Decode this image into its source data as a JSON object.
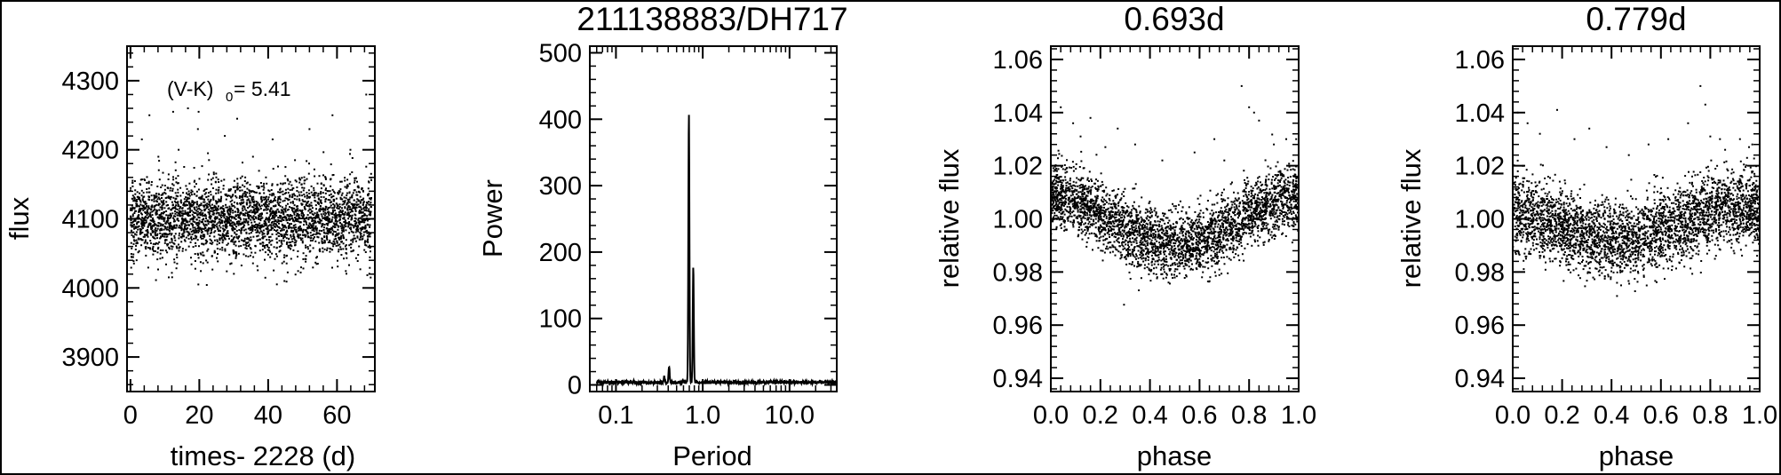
{
  "colors": {
    "ink": "#000000",
    "background": "#ffffff"
  },
  "chart_data": [
    {
      "type": "scatter",
      "title": "",
      "xlabel": "times- 2228 (d)",
      "ylabel": "flux",
      "xlim": [
        -1,
        71
      ],
      "ylim": [
        3850,
        4350
      ],
      "xticks": [
        0,
        20,
        40,
        60
      ],
      "xtick_labels": [
        "0",
        "20",
        "40",
        "60"
      ],
      "yticks": [
        3900,
        4000,
        4100,
        4200,
        4300
      ],
      "ytick_labels": [
        "3900",
        "4000",
        "4100",
        "4200",
        "4300"
      ],
      "annotation": {
        "main": "(V-K)",
        "sub": "0",
        "value": "= 5.41"
      },
      "series": [
        {
          "description": "K2 light curve, ~3300 points, 0–70 d",
          "x_range": [
            0,
            70
          ],
          "mean_flux": 4100,
          "scatter_sigma": 25,
          "variation": [
            {
              "period_d": 0.693,
              "amplitude": 15
            },
            {
              "period_d": 0.779,
              "amplitude": 10
            }
          ],
          "outliers": [
            [
              3.3,
              4215
            ],
            [
              5.5,
              4250
            ],
            [
              8.1,
              4190
            ],
            [
              12.4,
              4255
            ],
            [
              14.0,
              4200
            ],
            [
              16.7,
              4260
            ],
            [
              19.6,
              4230
            ],
            [
              19.8,
              4255
            ],
            [
              22.5,
              4195
            ],
            [
              27.4,
              4220
            ],
            [
              31.0,
              4245
            ],
            [
              35.6,
              4190
            ],
            [
              41.3,
              4215
            ],
            [
              47.8,
              4185
            ],
            [
              52.0,
              4230
            ],
            [
              58.7,
              4250
            ],
            [
              63.9,
              4200
            ],
            [
              68.5,
              4280
            ],
            [
              69.8,
              4015
            ]
          ]
        }
      ]
    },
    {
      "type": "line",
      "title": "211138883/DH717",
      "xlabel": "Period",
      "ylabel": "Power",
      "xscale": "log",
      "xlim": [
        0.05,
        35
      ],
      "ylim": [
        -10,
        510
      ],
      "xticks": [
        0.1,
        1.0,
        10.0
      ],
      "xtick_labels": [
        "0.1",
        "1.0",
        "10.0"
      ],
      "yticks": [
        0,
        100,
        200,
        300,
        400,
        500
      ],
      "ytick_labels": [
        "0",
        "100",
        "200",
        "300",
        "400",
        "500"
      ],
      "series": [
        {
          "description": "Lomb-Scargle periodogram",
          "peaks": [
            {
              "period": 0.693,
              "power": 405
            },
            {
              "period": 0.779,
              "power": 172
            },
            {
              "period": 0.41,
              "power": 25
            },
            {
              "period": 0.36,
              "power": 8
            }
          ],
          "noise_level": 5
        }
      ]
    },
    {
      "type": "scatter",
      "title": "0.693d",
      "xlabel": "phase",
      "ylabel": "relative flux",
      "xlim": [
        0,
        1
      ],
      "ylim": [
        0.935,
        1.065
      ],
      "xticks": [
        0,
        0.2,
        0.4,
        0.6,
        0.8,
        1.0
      ],
      "xtick_labels": [
        "0.0",
        "0.2",
        "0.4",
        "0.6",
        "0.8",
        "1.0"
      ],
      "yticks": [
        0.94,
        0.96,
        0.98,
        1.0,
        1.02,
        1.04,
        1.06
      ],
      "ytick_labels": [
        "0.94",
        "0.96",
        "0.98",
        "1.00",
        "1.02",
        "1.04",
        "1.06"
      ],
      "series": [
        {
          "description": "light curve phase-folded on 0.693 d",
          "period_d": 0.693,
          "points": 3300,
          "shape": {
            "max": 1.008,
            "min": 0.99,
            "min_phase": 0.5,
            "sigma": 0.006
          },
          "outliers": [
            [
              0.04,
              1.042
            ],
            [
              0.09,
              1.036
            ],
            [
              0.12,
              1.031
            ],
            [
              0.16,
              1.038
            ],
            [
              0.22,
              1.027
            ],
            [
              0.27,
              1.034
            ],
            [
              0.34,
              1.028
            ],
            [
              0.45,
              1.022
            ],
            [
              0.58,
              1.025
            ],
            [
              0.66,
              1.03
            ],
            [
              0.7,
              1.022
            ],
            [
              0.77,
              1.05
            ],
            [
              0.8,
              1.042
            ],
            [
              0.82,
              1.04
            ],
            [
              0.84,
              1.037
            ],
            [
              0.9,
              1.028
            ],
            [
              0.95,
              1.03
            ],
            [
              0.99,
              1.03
            ]
          ]
        }
      ]
    },
    {
      "type": "scatter",
      "title": "0.779d",
      "xlabel": "phase",
      "ylabel": "relative flux",
      "xlim": [
        0,
        1
      ],
      "ylim": [
        0.935,
        1.065
      ],
      "xticks": [
        0,
        0.2,
        0.4,
        0.6,
        0.8,
        1.0
      ],
      "xtick_labels": [
        "0.0",
        "0.2",
        "0.4",
        "0.6",
        "0.8",
        "1.0"
      ],
      "yticks": [
        0.94,
        0.96,
        0.98,
        1.0,
        1.02,
        1.04,
        1.06
      ],
      "ytick_labels": [
        "0.94",
        "0.96",
        "0.98",
        "1.00",
        "1.02",
        "1.04",
        "1.06"
      ],
      "series": [
        {
          "description": "light curve phase-folded on 0.779 d",
          "period_d": 0.779,
          "points": 3300,
          "shape": {
            "max": 1.004,
            "min": 0.992,
            "min_phase": 0.42,
            "sigma": 0.007
          },
          "outliers": [
            [
              0.02,
              1.04
            ],
            [
              0.06,
              1.036
            ],
            [
              0.11,
              1.032
            ],
            [
              0.18,
              1.041
            ],
            [
              0.25,
              1.03
            ],
            [
              0.31,
              1.034
            ],
            [
              0.38,
              1.027
            ],
            [
              0.47,
              1.024
            ],
            [
              0.55,
              1.028
            ],
            [
              0.63,
              1.03
            ],
            [
              0.71,
              1.036
            ],
            [
              0.76,
              1.05
            ],
            [
              0.78,
              1.043
            ],
            [
              0.8,
              1.031
            ],
            [
              0.86,
              1.026
            ],
            [
              0.92,
              1.03
            ],
            [
              0.97,
              1.028
            ]
          ]
        }
      ]
    }
  ]
}
